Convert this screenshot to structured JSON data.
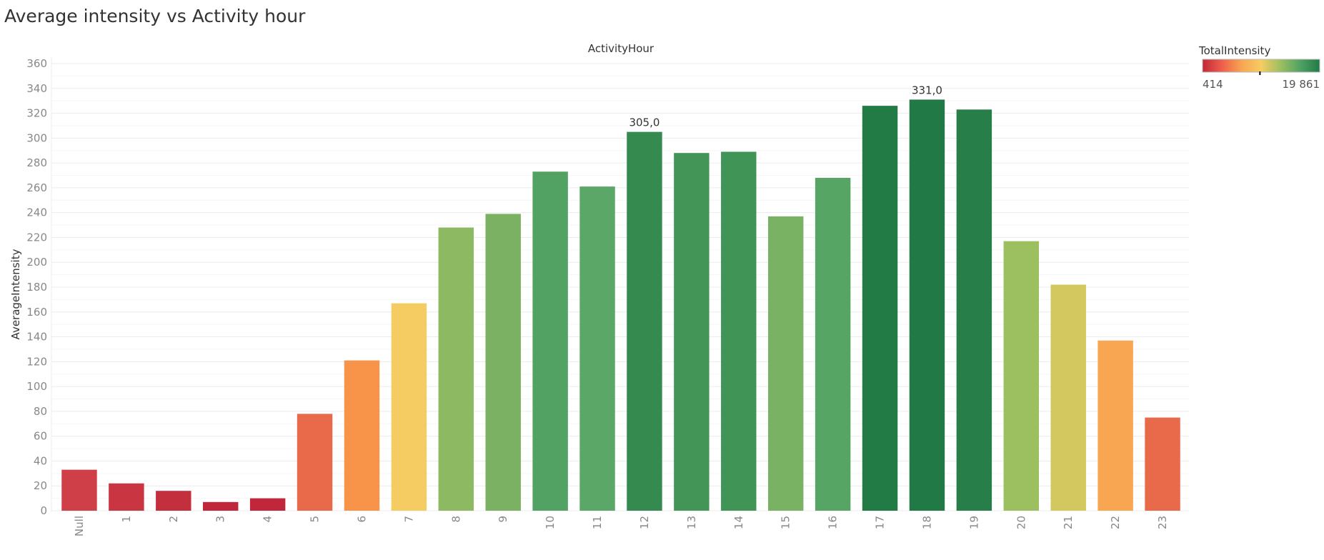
{
  "page": {
    "title": "Average intensity vs Activity hour"
  },
  "chart_data": {
    "type": "bar",
    "title": "Average intensity vs Activity hour",
    "header": "ActivityHour",
    "xlabel": "",
    "ylabel": "AverageIntensity",
    "ylim": [
      0,
      360
    ],
    "yticks": [
      0,
      20,
      40,
      60,
      80,
      100,
      120,
      140,
      160,
      180,
      200,
      220,
      240,
      260,
      280,
      300,
      320,
      340,
      360
    ],
    "grid": true,
    "categories": [
      "Null",
      "1",
      "2",
      "3",
      "4",
      "5",
      "6",
      "7",
      "8",
      "9",
      "10",
      "11",
      "12",
      "13",
      "14",
      "15",
      "16",
      "17",
      "18",
      "19",
      "20",
      "21",
      "22",
      "23"
    ],
    "values": [
      33,
      22,
      16,
      7,
      10,
      78,
      121,
      167,
      228,
      239,
      273,
      261,
      305,
      288,
      289,
      237,
      268,
      326,
      331,
      323,
      217,
      182,
      137,
      75
    ],
    "colors": [
      "#cf3f48",
      "#c93540",
      "#c42f3e",
      "#c0273a",
      "#c0273a",
      "#e9694b",
      "#f89449",
      "#f5cc62",
      "#8db962",
      "#7ab163",
      "#51a263",
      "#5aa767",
      "#348a4f",
      "#429556",
      "#409456",
      "#7ab263",
      "#56a565",
      "#227a45",
      "#217a45",
      "#277e48",
      "#9cbf60",
      "#d3c860",
      "#f8a652",
      "#e86a4a"
    ],
    "data_labels": [
      {
        "category": "12",
        "text": "305,0"
      },
      {
        "category": "18",
        "text": "331,0"
      }
    ],
    "legend": {
      "title": "TotalIntensity",
      "position": "top-right",
      "min_label": "414",
      "max_label": "19 861",
      "marker_fraction": 0.49,
      "gradient": [
        "#c0273a",
        "#ee5f4b",
        "#f8a552",
        "#f5cc62",
        "#9cbf60",
        "#51a263",
        "#217a45"
      ]
    }
  }
}
